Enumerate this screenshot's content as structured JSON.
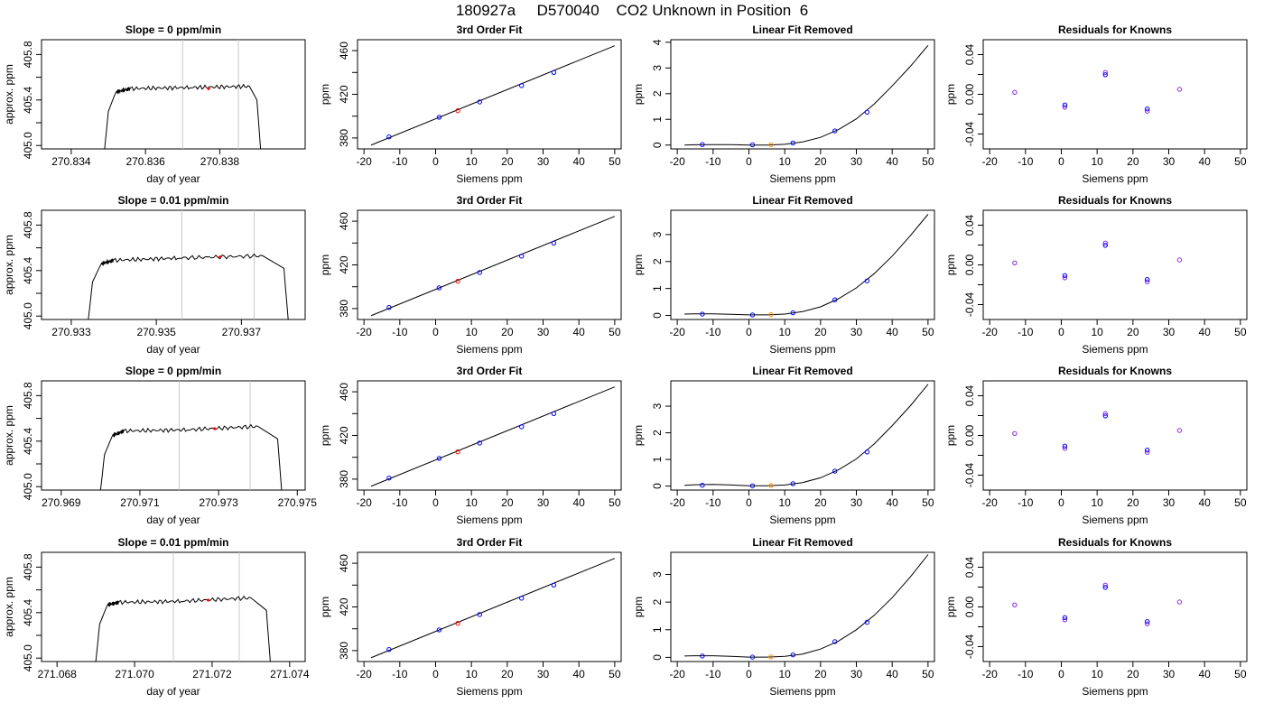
{
  "figure_title": "180927a     D570040    CO2 Unknown in Position  6",
  "colors": {
    "trace": "#000000",
    "known_point": "#0000ff",
    "unknown_point": "#ff0000",
    "unknown_point_fit": "#ff8c00",
    "residual_point": "#8a2be2",
    "window_line": "#c8c8c8"
  },
  "chart_data": [
    {
      "type": "line",
      "title": "Slope =  0  ppm/min",
      "xlabel": "day of year",
      "ylabel": "approx. ppm",
      "xlim": [
        270.8332,
        270.8403
      ],
      "ylim": [
        404.97,
        405.93
      ],
      "xticks": [
        "270.834",
        "270.836",
        "270.838"
      ],
      "xtick_values": [
        270.834,
        270.836,
        270.838
      ],
      "yticks": [
        "405.0",
        "405.4",
        "405.8"
      ],
      "ytick_values": [
        405.0,
        405.4,
        405.8
      ],
      "yticks_minor": [
        405.2,
        405.6
      ],
      "trace": {
        "x": [
          270.8349,
          270.835,
          270.8352,
          270.8356,
          270.8372,
          270.8388,
          270.839,
          270.8391
        ],
        "y": [
          404.97,
          405.3,
          405.47,
          405.5,
          405.51,
          405.52,
          405.4,
          404.97
        ]
      },
      "window": [
        270.837,
        270.8385
      ],
      "point": {
        "x": 270.8377,
        "y": 405.5
      }
    },
    {
      "type": "line",
      "title": "3rd Order Fit",
      "xlabel": "Siemens ppm",
      "ylabel": "ppm",
      "xlim": [
        -21.8,
        51.8
      ],
      "ylim": [
        370,
        470
      ],
      "xticks": [
        "-20",
        "-10",
        "0",
        "10",
        "20",
        "30",
        "40",
        "50"
      ],
      "xtick_values": [
        -20,
        -10,
        0,
        10,
        20,
        30,
        40,
        50
      ],
      "yticks": [
        "380",
        "420",
        "460"
      ],
      "ytick_values": [
        380,
        420,
        460
      ],
      "yticks_minor": [
        400,
        440
      ],
      "line": {
        "x": [
          -18,
          50
        ],
        "y": [
          373.5,
          464.5
        ]
      },
      "knowns": {
        "x": [
          -13,
          1,
          12.3,
          24,
          33
        ],
        "y": [
          381,
          399,
          413,
          428,
          440
        ]
      },
      "unknown": {
        "x": 6.2,
        "y": 405
      }
    },
    {
      "type": "line",
      "title": "Linear Fit Removed",
      "xlabel": "Siemens ppm",
      "ylabel": "ppm",
      "xlim": [
        -21.8,
        51.8
      ],
      "ylim": [
        -0.15,
        4.1
      ],
      "xticks": [
        "-20",
        "-10",
        "0",
        "10",
        "20",
        "30",
        "40",
        "50"
      ],
      "xtick_values": [
        -20,
        -10,
        0,
        10,
        20,
        30,
        40,
        50
      ],
      "yticks": [
        "0",
        "1",
        "2",
        "3",
        "4"
      ],
      "ytick_values": [
        0,
        1,
        2,
        3,
        4
      ],
      "curve": {
        "x": [
          -18,
          -15,
          -10,
          -5,
          0,
          5,
          10,
          15,
          20,
          25,
          30,
          35,
          40,
          45,
          50
        ],
        "y": [
          0.0,
          0.01,
          0.02,
          0.02,
          0.0,
          0.0,
          0.03,
          0.12,
          0.3,
          0.6,
          1.02,
          1.6,
          2.3,
          3.05,
          3.88
        ]
      },
      "knowns": {
        "x": [
          -13,
          1,
          12.3,
          24,
          33
        ],
        "y": [
          0.02,
          0.01,
          0.08,
          0.55,
          1.28
        ]
      },
      "unknown": {
        "x": 6.2,
        "y": 0.01
      }
    },
    {
      "type": "scatter",
      "title": "Residuals for Knowns",
      "xlabel": "Siemens ppm",
      "ylabel": "ppm",
      "xlim": [
        -21.8,
        51.8
      ],
      "ylim": [
        -0.055,
        0.055
      ],
      "xticks": [
        "-20",
        "-10",
        "0",
        "10",
        "20",
        "30",
        "40",
        "50"
      ],
      "xtick_values": [
        -20,
        -10,
        0,
        10,
        20,
        30,
        40,
        50
      ],
      "yticks": [
        "-0.04",
        "0.00",
        "0.04"
      ],
      "ytick_values": [
        -0.04,
        0.0,
        0.04
      ],
      "yticks_minor": [
        -0.02,
        0.02
      ],
      "points": {
        "x": [
          -13,
          1,
          12.3,
          24,
          33
        ],
        "y": [
          0.002,
          -0.013,
          0.022,
          -0.017,
          0.005
        ]
      }
    },
    {
      "type": "line",
      "title": "Slope =  0.01  ppm/min",
      "xlabel": "day of year",
      "ylabel": "approx. ppm",
      "xlim": [
        270.9323,
        270.9385
      ],
      "ylim": [
        404.97,
        405.93
      ],
      "xticks": [
        "270.933",
        "270.935",
        "270.937"
      ],
      "xtick_values": [
        270.933,
        270.935,
        270.937
      ],
      "yticks": [
        "405.0",
        "405.4",
        "405.8"
      ],
      "ytick_values": [
        405.0,
        405.4,
        405.8
      ],
      "yticks_minor": [
        405.2,
        405.6
      ],
      "trace": {
        "x": [
          270.9334,
          270.9335,
          270.9337,
          270.934,
          270.9355,
          270.9375,
          270.938,
          270.9381
        ],
        "y": [
          404.97,
          405.3,
          405.46,
          405.49,
          405.51,
          405.53,
          405.42,
          404.97
        ]
      },
      "window": [
        270.9356,
        270.9373
      ],
      "point": {
        "x": 270.9365,
        "y": 405.52
      }
    },
    {
      "type": "line",
      "title": "3rd Order Fit",
      "xlabel": "Siemens ppm",
      "ylabel": "ppm",
      "xlim": [
        -21.8,
        51.8
      ],
      "ylim": [
        370,
        470
      ],
      "xticks": [
        "-20",
        "-10",
        "0",
        "10",
        "20",
        "30",
        "40",
        "50"
      ],
      "xtick_values": [
        -20,
        -10,
        0,
        10,
        20,
        30,
        40,
        50
      ],
      "yticks": [
        "380",
        "420",
        "460"
      ],
      "ytick_values": [
        380,
        420,
        460
      ],
      "yticks_minor": [
        400,
        440
      ],
      "line": {
        "x": [
          -18,
          50
        ],
        "y": [
          373.5,
          464.5
        ]
      },
      "knowns": {
        "x": [
          -13,
          1,
          12.3,
          24,
          33
        ],
        "y": [
          381,
          399,
          413,
          428,
          440
        ]
      },
      "unknown": {
        "x": 6.2,
        "y": 405
      }
    },
    {
      "type": "line",
      "title": "Linear Fit Removed",
      "xlabel": "Siemens ppm",
      "ylabel": "ppm",
      "xlim": [
        -21.8,
        51.8
      ],
      "ylim": [
        -0.15,
        3.9
      ],
      "xticks": [
        "-20",
        "-10",
        "0",
        "10",
        "20",
        "30",
        "40",
        "50"
      ],
      "xtick_values": [
        -20,
        -10,
        0,
        10,
        20,
        30,
        40,
        50
      ],
      "yticks": [
        "0",
        "1",
        "2",
        "3"
      ],
      "ytick_values": [
        0,
        1,
        2,
        3
      ],
      "curve": {
        "x": [
          -18,
          -15,
          -10,
          -5,
          0,
          5,
          10,
          15,
          20,
          25,
          30,
          35,
          40,
          45,
          50
        ],
        "y": [
          0.05,
          0.06,
          0.06,
          0.04,
          0.02,
          0.02,
          0.05,
          0.14,
          0.32,
          0.62,
          1.02,
          1.55,
          2.2,
          2.95,
          3.75
        ]
      },
      "knowns": {
        "x": [
          -13,
          1,
          12.3,
          24,
          33
        ],
        "y": [
          0.05,
          0.02,
          0.1,
          0.58,
          1.28
        ]
      },
      "unknown": {
        "x": 6.2,
        "y": 0.03
      }
    },
    {
      "type": "scatter",
      "title": "Residuals for Knowns",
      "xlabel": "Siemens ppm",
      "ylabel": "ppm",
      "xlim": [
        -21.8,
        51.8
      ],
      "ylim": [
        -0.055,
        0.055
      ],
      "xticks": [
        "-20",
        "-10",
        "0",
        "10",
        "20",
        "30",
        "40",
        "50"
      ],
      "xtick_values": [
        -20,
        -10,
        0,
        10,
        20,
        30,
        40,
        50
      ],
      "yticks": [
        "-0.04",
        "0.00",
        "0.04"
      ],
      "ytick_values": [
        -0.04,
        0.0,
        0.04
      ],
      "yticks_minor": [
        -0.02,
        0.02
      ],
      "points": {
        "x": [
          -13,
          1,
          12.3,
          24,
          33
        ],
        "y": [
          0.002,
          -0.013,
          0.022,
          -0.017,
          0.005
        ]
      }
    },
    {
      "type": "line",
      "title": "Slope =  0  ppm/min",
      "xlabel": "day of year",
      "ylabel": "approx. ppm",
      "xlim": [
        270.9685,
        270.9752
      ],
      "ylim": [
        404.97,
        405.93
      ],
      "xticks": [
        "270.969",
        "270.971",
        "270.973",
        "270.975"
      ],
      "xtick_values": [
        270.969,
        270.971,
        270.973,
        270.975
      ],
      "yticks": [
        "405.0",
        "405.4",
        "405.8"
      ],
      "ytick_values": [
        405.0,
        405.4,
        405.8
      ],
      "yticks_minor": [
        405.2,
        405.6
      ],
      "trace": {
        "x": [
          270.97,
          270.9701,
          270.9703,
          270.9706,
          270.9722,
          270.974,
          270.9745,
          270.9746
        ],
        "y": [
          404.97,
          405.28,
          405.45,
          405.49,
          405.5,
          405.53,
          405.42,
          404.97
        ]
      },
      "window": [
        270.972,
        270.9738
      ],
      "point": {
        "x": 270.9729,
        "y": 405.51
      }
    },
    {
      "type": "line",
      "title": "3rd Order Fit",
      "xlabel": "Siemens ppm",
      "ylabel": "ppm",
      "xlim": [
        -21.8,
        51.8
      ],
      "ylim": [
        370,
        470
      ],
      "xticks": [
        "-20",
        "-10",
        "0",
        "10",
        "20",
        "30",
        "40",
        "50"
      ],
      "xtick_values": [
        -20,
        -10,
        0,
        10,
        20,
        30,
        40,
        50
      ],
      "yticks": [
        "380",
        "420",
        "460"
      ],
      "ytick_values": [
        380,
        420,
        460
      ],
      "yticks_minor": [
        400,
        440
      ],
      "line": {
        "x": [
          -18,
          50
        ],
        "y": [
          373.5,
          464.5
        ]
      },
      "knowns": {
        "x": [
          -13,
          1,
          12.3,
          24,
          33
        ],
        "y": [
          381,
          399,
          413,
          428,
          440
        ]
      },
      "unknown": {
        "x": 6.2,
        "y": 405
      }
    },
    {
      "type": "line",
      "title": "Linear Fit Removed",
      "xlabel": "Siemens ppm",
      "ylabel": "ppm",
      "xlim": [
        -21.8,
        51.8
      ],
      "ylim": [
        -0.15,
        3.95
      ],
      "xticks": [
        "-20",
        "-10",
        "0",
        "10",
        "20",
        "30",
        "40",
        "50"
      ],
      "xtick_values": [
        -20,
        -10,
        0,
        10,
        20,
        30,
        40,
        50
      ],
      "yticks": [
        "0",
        "1",
        "2",
        "3"
      ],
      "ytick_values": [
        0,
        1,
        2,
        3
      ],
      "curve": {
        "x": [
          -18,
          -15,
          -10,
          -5,
          0,
          5,
          10,
          15,
          20,
          25,
          30,
          35,
          40,
          45,
          50
        ],
        "y": [
          0.03,
          0.05,
          0.06,
          0.04,
          0.01,
          0.01,
          0.04,
          0.13,
          0.31,
          0.61,
          1.02,
          1.58,
          2.27,
          3.0,
          3.82
        ]
      },
      "knowns": {
        "x": [
          -13,
          1,
          12.3,
          24,
          33
        ],
        "y": [
          0.03,
          0.01,
          0.09,
          0.56,
          1.28
        ]
      },
      "unknown": {
        "x": 6.2,
        "y": 0.02
      }
    },
    {
      "type": "scatter",
      "title": "Residuals for Knowns",
      "xlabel": "Siemens ppm",
      "ylabel": "ppm",
      "xlim": [
        -21.8,
        51.8
      ],
      "ylim": [
        -0.055,
        0.055
      ],
      "xticks": [
        "-20",
        "-10",
        "0",
        "10",
        "20",
        "30",
        "40",
        "50"
      ],
      "xtick_values": [
        -20,
        -10,
        0,
        10,
        20,
        30,
        40,
        50
      ],
      "yticks": [
        "-0.04",
        "0.00",
        "0.04"
      ],
      "ytick_values": [
        -0.04,
        0.0,
        0.04
      ],
      "yticks_minor": [
        -0.02,
        0.02
      ],
      "points": {
        "x": [
          -13,
          1,
          12.3,
          24,
          33
        ],
        "y": [
          0.002,
          -0.013,
          0.022,
          -0.017,
          0.005
        ]
      }
    },
    {
      "type": "line",
      "title": "Slope =  0.01  ppm/min",
      "xlabel": "day of year",
      "ylabel": "approx. ppm",
      "xlim": [
        271.0676,
        271.0744
      ],
      "ylim": [
        404.97,
        405.93
      ],
      "xticks": [
        "271.068",
        "271.070",
        "271.072",
        "271.074"
      ],
      "xtick_values": [
        271.068,
        271.07,
        271.072,
        271.074
      ],
      "yticks": [
        "405.0",
        "405.4",
        "405.8"
      ],
      "ytick_values": [
        405.0,
        405.4,
        405.8
      ],
      "yticks_minor": [
        405.2,
        405.6
      ],
      "trace": {
        "x": [
          271.069,
          271.0691,
          271.0693,
          271.0696,
          271.0712,
          271.073,
          271.0734,
          271.0735
        ],
        "y": [
          404.97,
          405.3,
          405.47,
          405.49,
          405.5,
          405.53,
          405.42,
          404.97
        ]
      },
      "window": [
        271.071,
        271.0727
      ],
      "point": {
        "x": 271.0719,
        "y": 405.51
      }
    },
    {
      "type": "line",
      "title": "3rd Order Fit",
      "xlabel": "Siemens ppm",
      "ylabel": "ppm",
      "xlim": [
        -21.8,
        51.8
      ],
      "ylim": [
        370,
        470
      ],
      "xticks": [
        "-20",
        "-10",
        "0",
        "10",
        "20",
        "30",
        "40",
        "50"
      ],
      "xtick_values": [
        -20,
        -10,
        0,
        10,
        20,
        30,
        40,
        50
      ],
      "yticks": [
        "380",
        "420",
        "460"
      ],
      "ytick_values": [
        380,
        420,
        460
      ],
      "yticks_minor": [
        400,
        440
      ],
      "line": {
        "x": [
          -18,
          50
        ],
        "y": [
          373.5,
          464.5
        ]
      },
      "knowns": {
        "x": [
          -13,
          1,
          12.3,
          24,
          33
        ],
        "y": [
          381,
          399,
          413,
          428,
          440
        ]
      },
      "unknown": {
        "x": 6.2,
        "y": 405
      }
    },
    {
      "type": "line",
      "title": "Linear Fit Removed",
      "xlabel": "Siemens ppm",
      "ylabel": "ppm",
      "xlim": [
        -21.8,
        51.8
      ],
      "ylim": [
        -0.15,
        3.8
      ],
      "xticks": [
        "-20",
        "-10",
        "0",
        "10",
        "20",
        "30",
        "40",
        "50"
      ],
      "xtick_values": [
        -20,
        -10,
        0,
        10,
        20,
        30,
        40,
        50
      ],
      "yticks": [
        "0",
        "1",
        "2",
        "3"
      ],
      "ytick_values": [
        0,
        1,
        2,
        3
      ],
      "curve": {
        "x": [
          -18,
          -15,
          -10,
          -5,
          0,
          5,
          10,
          15,
          20,
          25,
          30,
          35,
          40,
          45,
          50
        ],
        "y": [
          0.05,
          0.06,
          0.06,
          0.04,
          0.01,
          0.01,
          0.04,
          0.12,
          0.3,
          0.59,
          1.0,
          1.52,
          2.16,
          2.9,
          3.72
        ]
      },
      "knowns": {
        "x": [
          -13,
          1,
          12.3,
          24,
          33
        ],
        "y": [
          0.05,
          0.01,
          0.09,
          0.57,
          1.27
        ]
      },
      "unknown": {
        "x": 6.2,
        "y": 0.02
      }
    },
    {
      "type": "scatter",
      "title": "Residuals for Knowns",
      "xlabel": "Siemens ppm",
      "ylabel": "ppm",
      "xlim": [
        -21.8,
        51.8
      ],
      "ylim": [
        -0.055,
        0.055
      ],
      "xticks": [
        "-20",
        "-10",
        "0",
        "10",
        "20",
        "30",
        "40",
        "50"
      ],
      "xtick_values": [
        -20,
        -10,
        0,
        10,
        20,
        30,
        40,
        50
      ],
      "yticks": [
        "-0.04",
        "0.00",
        "0.04"
      ],
      "ytick_values": [
        -0.04,
        0.0,
        0.04
      ],
      "yticks_minor": [
        -0.02,
        0.02
      ],
      "points": {
        "x": [
          -13,
          1,
          12.3,
          24,
          33
        ],
        "y": [
          0.002,
          -0.013,
          0.022,
          -0.017,
          0.005
        ]
      }
    }
  ]
}
